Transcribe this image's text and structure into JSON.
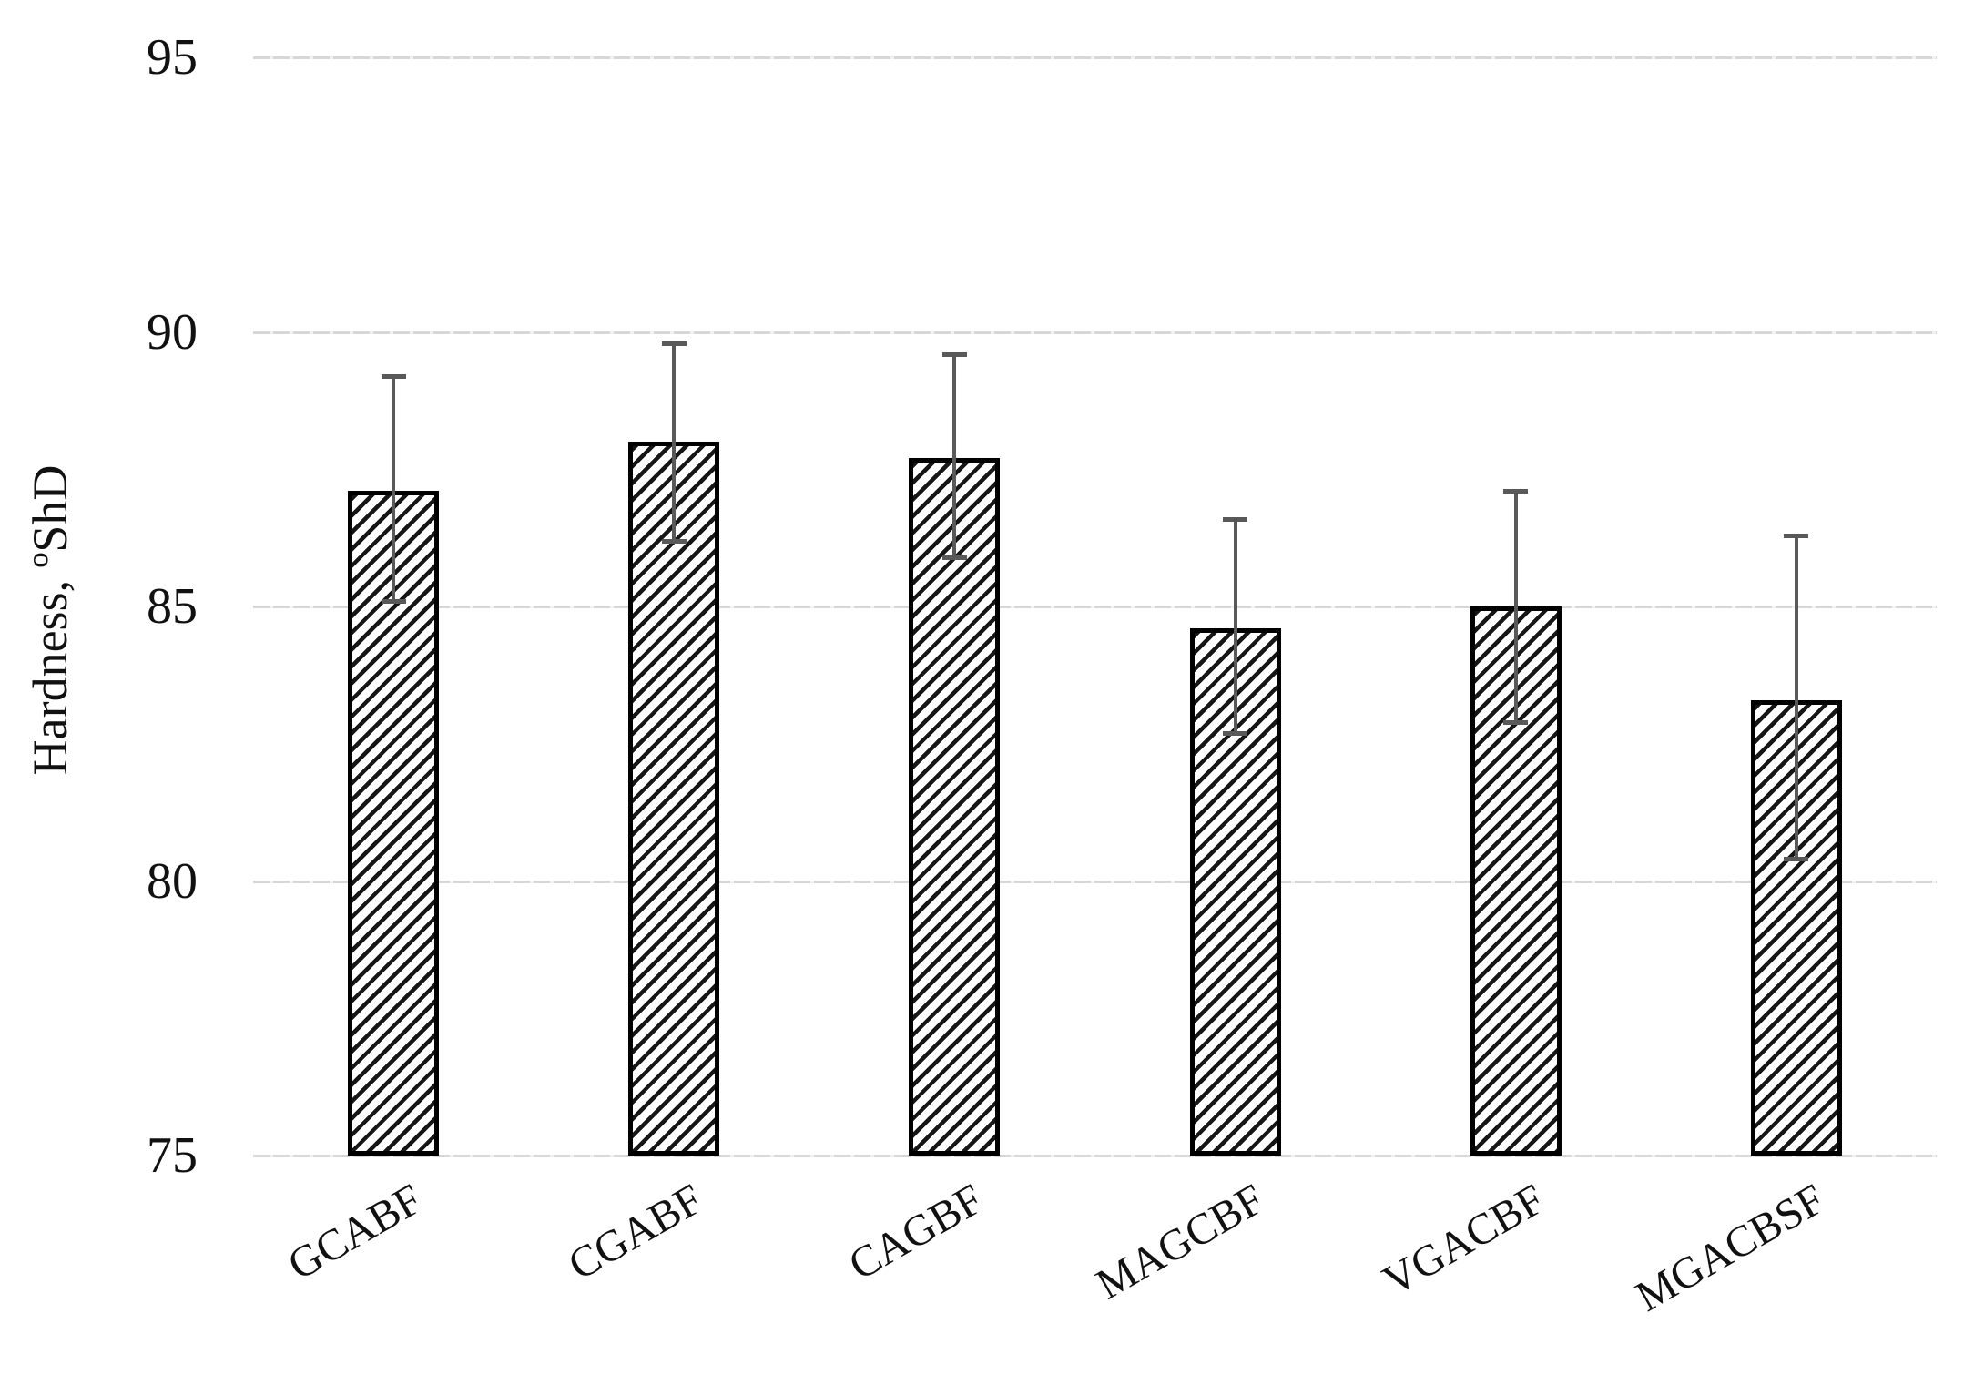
{
  "figure": {
    "background": "#ffffff"
  },
  "chart_data": {
    "type": "bar",
    "categories": [
      "GCABF",
      "CGABF",
      "CAGBF",
      "MAGCBF",
      "VGACBF",
      "MGACBSF"
    ],
    "values": [
      87.1,
      88.0,
      87.7,
      84.6,
      85.0,
      83.3
    ],
    "error_upper": [
      89.2,
      89.8,
      89.6,
      86.6,
      87.1,
      86.3
    ],
    "error_lower": [
      85.1,
      86.2,
      85.9,
      82.7,
      82.9,
      80.4
    ],
    "title": "",
    "xlabel": "",
    "ylabel": "Hardness, ºShD",
    "ylim": [
      75,
      95
    ],
    "yticks": [
      75,
      80,
      85,
      90,
      95
    ],
    "grid": true,
    "legend": "none",
    "bar_style": "diagonal-hatch",
    "colors": {
      "hatch": "#161616",
      "bar_border": "#000000",
      "error_bar": "#595959",
      "gridline": "#d7d7d7",
      "text": "#111111"
    }
  }
}
